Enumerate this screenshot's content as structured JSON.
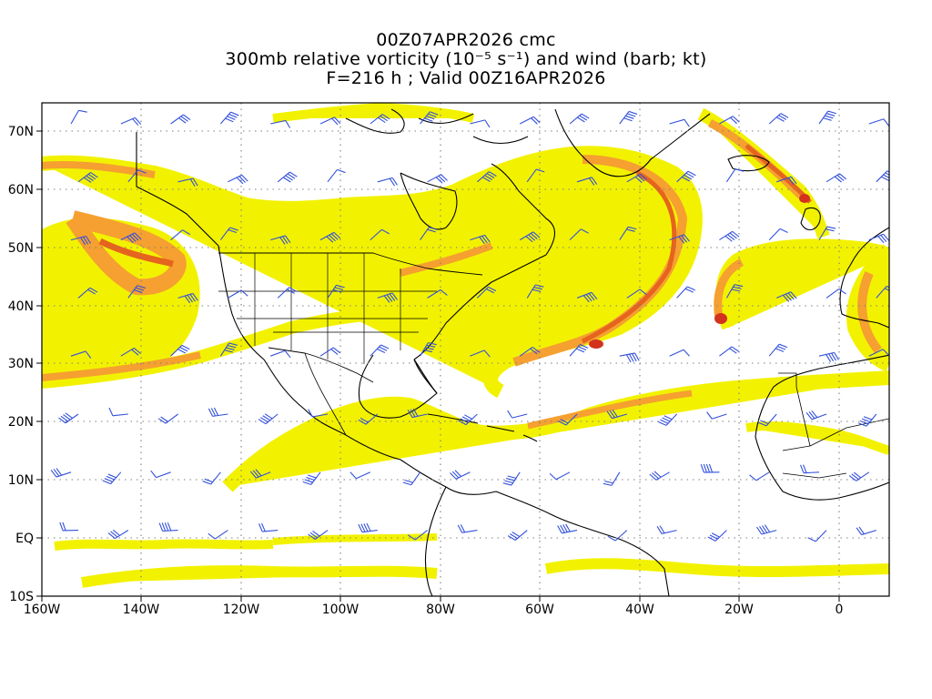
{
  "title": {
    "line1": "00Z07APR2026 cmc",
    "line2": "300mb relative vorticity (10⁻⁵ s⁻¹) and wind (barb; kt)",
    "line3": "F=216 h ; Valid 00Z16APR2026"
  },
  "axes": {
    "lat_labels": [
      "70N",
      "60N",
      "50N",
      "40N",
      "30N",
      "20N",
      "10N",
      "EQ",
      "10S"
    ],
    "lon_labels": [
      "160W",
      "140W",
      "120W",
      "100W",
      "80W",
      "60W",
      "40W",
      "20W",
      "0"
    ]
  },
  "colors": {
    "fill_light": "#f2f200",
    "fill_mid": "#ffd23c",
    "fill_orange": "#f5a030",
    "fill_dark": "#e6641e",
    "fill_red": "#d2321e",
    "coast": "#000000",
    "barb": "#3250dc",
    "grid": "#7f7f7f"
  },
  "legend": {}
}
